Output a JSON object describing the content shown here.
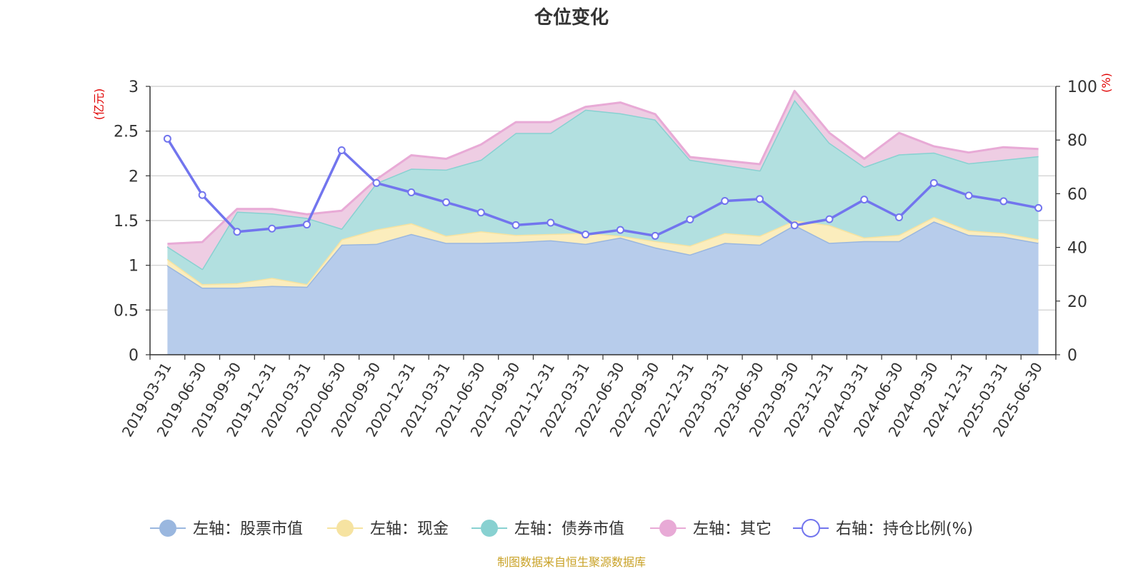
{
  "chart_data": {
    "type": "area",
    "title": "仓位变化",
    "left_unit": "(亿元)",
    "right_unit": "(%)",
    "source": "制图数据来自恒生聚源数据库",
    "grid": true,
    "legend_position": "bottom",
    "left_axis": {
      "min": 0,
      "max": 3,
      "ticks": [
        0,
        0.5,
        1,
        1.5,
        2,
        2.5,
        3
      ],
      "tick_labels": [
        "0",
        "0.5",
        "1",
        "1.5",
        "2",
        "2.5",
        "3"
      ]
    },
    "right_axis": {
      "min": 0,
      "max": 100,
      "ticks": [
        0,
        20,
        40,
        60,
        80,
        100
      ],
      "tick_labels": [
        "0",
        "20",
        "40",
        "60",
        "80",
        "100"
      ]
    },
    "categories": [
      "2019-03-31",
      "2019-06-30",
      "2019-09-30",
      "2019-12-31",
      "2020-03-31",
      "2020-06-30",
      "2020-09-30",
      "2020-12-31",
      "2021-03-31",
      "2021-06-30",
      "2021-09-30",
      "2021-12-31",
      "2022-03-31",
      "2022-06-30",
      "2022-09-30",
      "2022-12-31",
      "2023-03-31",
      "2023-06-30",
      "2023-09-30",
      "2023-12-31",
      "2024-03-31",
      "2024-06-30",
      "2024-09-30",
      "2024-12-31",
      "2025-03-31",
      "2025-06-30"
    ],
    "series": [
      {
        "name": "左轴：股票市值",
        "axis": "left",
        "kind": "area",
        "color": "#9ab7df",
        "fill": "#b7cceb",
        "values": [
          1.0,
          0.75,
          0.75,
          0.77,
          0.76,
          1.23,
          1.24,
          1.35,
          1.25,
          1.25,
          1.26,
          1.28,
          1.24,
          1.31,
          1.2,
          1.12,
          1.25,
          1.23,
          1.45,
          1.25,
          1.27,
          1.27,
          1.49,
          1.34,
          1.32,
          1.25
        ]
      },
      {
        "name": "左轴：现金",
        "axis": "left",
        "kind": "area",
        "color": "#f6e3a1",
        "fill": "#fbedbd",
        "values": [
          0.07,
          0.04,
          0.05,
          0.09,
          0.03,
          0.06,
          0.16,
          0.12,
          0.08,
          0.13,
          0.08,
          0.07,
          0.12,
          0.02,
          0.07,
          0.1,
          0.11,
          0.1,
          0.05,
          0.2,
          0.04,
          0.07,
          0.05,
          0.05,
          0.04,
          0.04
        ]
      },
      {
        "name": "左轴：债券市值",
        "axis": "left",
        "kind": "area",
        "color": "#88d1d1",
        "fill": "#b2e0e0",
        "values": [
          0.14,
          0.17,
          0.8,
          0.72,
          0.74,
          0.12,
          0.52,
          0.61,
          0.74,
          0.8,
          1.14,
          1.13,
          1.38,
          1.37,
          1.36,
          0.96,
          0.76,
          0.73,
          1.35,
          0.92,
          0.79,
          0.9,
          0.72,
          0.75,
          0.82,
          0.93
        ]
      },
      {
        "name": "左轴：其它",
        "axis": "left",
        "kind": "area",
        "color": "#e8aad6",
        "fill": "#eecde3",
        "values": [
          0.03,
          0.3,
          0.03,
          0.05,
          0.04,
          0.2,
          0.04,
          0.15,
          0.12,
          0.17,
          0.12,
          0.12,
          0.03,
          0.12,
          0.06,
          0.03,
          0.05,
          0.07,
          0.1,
          0.11,
          0.09,
          0.24,
          0.07,
          0.12,
          0.14,
          0.08
        ]
      },
      {
        "name": "右轴：持仓比例(%)",
        "axis": "right",
        "kind": "line",
        "color": "#7275ee",
        "values": [
          80.5,
          59.5,
          45.8,
          47.0,
          48.5,
          76.2,
          64.0,
          60.5,
          56.8,
          53.0,
          48.3,
          49.2,
          44.8,
          46.5,
          44.3,
          50.4,
          57.3,
          58.0,
          48.2,
          50.5,
          57.8,
          51.2,
          64.0,
          59.3,
          57.2,
          54.7
        ]
      }
    ]
  }
}
